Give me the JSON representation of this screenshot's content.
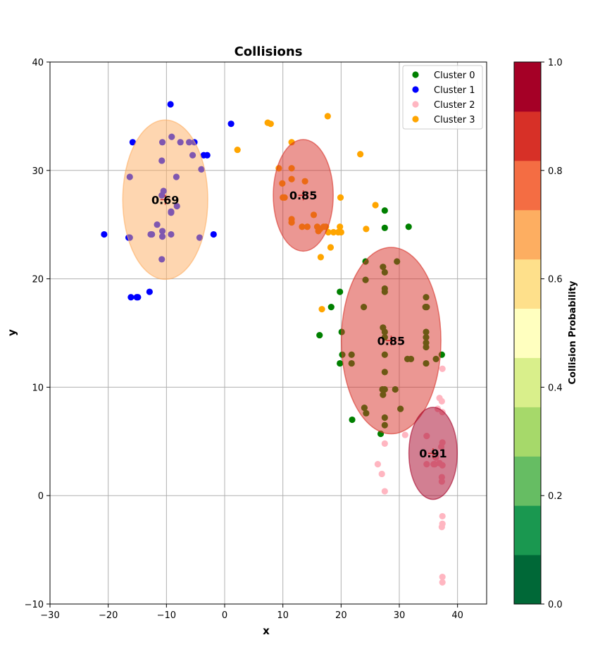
{
  "chart_data": {
    "type": "scatter",
    "title": "Collisions",
    "xlabel": "x",
    "ylabel": "y",
    "xlim": [
      -30,
      45
    ],
    "ylim": [
      -10,
      40
    ],
    "xticks": [
      -30,
      -20,
      -10,
      0,
      10,
      20,
      30,
      40
    ],
    "yticks": [
      -10,
      0,
      10,
      20,
      30,
      40
    ],
    "grid": true,
    "legend_position": "top-right",
    "series": [
      {
        "name": "Cluster 0",
        "color": "#008000",
        "points": [
          [
            27.5,
            26.3
          ],
          [
            27.5,
            24.7
          ],
          [
            31.6,
            24.8
          ],
          [
            24.2,
            21.6
          ],
          [
            27.2,
            21.1
          ],
          [
            29.6,
            21.6
          ],
          [
            24.2,
            19.9
          ],
          [
            27.5,
            20.6
          ],
          [
            19.8,
            18.8
          ],
          [
            27.5,
            19.1
          ],
          [
            27.5,
            18.8
          ],
          [
            34.6,
            18.3
          ],
          [
            18.3,
            17.4
          ],
          [
            23.9,
            17.4
          ],
          [
            34.5,
            17.4
          ],
          [
            34.7,
            17.4
          ],
          [
            27.2,
            15.5
          ],
          [
            16.3,
            14.8
          ],
          [
            20.1,
            15.1
          ],
          [
            27.5,
            15.1
          ],
          [
            34.6,
            15.1
          ],
          [
            27.5,
            14.6
          ],
          [
            34.6,
            14.6
          ],
          [
            34.6,
            14.1
          ],
          [
            34.6,
            13.7
          ],
          [
            20.2,
            13.0
          ],
          [
            21.8,
            13.0
          ],
          [
            27.5,
            13.0
          ],
          [
            37.3,
            13.0
          ],
          [
            31.4,
            12.6
          ],
          [
            32.0,
            12.6
          ],
          [
            36.3,
            12.6
          ],
          [
            19.8,
            12.2
          ],
          [
            21.8,
            12.2
          ],
          [
            34.6,
            12.2
          ],
          [
            27.5,
            11.4
          ],
          [
            27.1,
            9.8
          ],
          [
            27.5,
            9.8
          ],
          [
            29.3,
            9.8
          ],
          [
            27.2,
            9.3
          ],
          [
            30.2,
            8.0
          ],
          [
            24.0,
            8.1
          ],
          [
            24.3,
            7.6
          ],
          [
            27.5,
            7.2
          ],
          [
            21.9,
            7.0
          ],
          [
            27.5,
            6.5
          ],
          [
            26.8,
            5.7
          ]
        ]
      },
      {
        "name": "Cluster 1",
        "color": "#0000ff",
        "points": [
          [
            -9.3,
            36.1
          ],
          [
            1.1,
            34.3
          ],
          [
            -9.1,
            33.1
          ],
          [
            -15.8,
            32.6
          ],
          [
            -10.7,
            32.6
          ],
          [
            -7.6,
            32.6
          ],
          [
            -6.1,
            32.6
          ],
          [
            -5.2,
            32.6
          ],
          [
            -3.6,
            31.4
          ],
          [
            -3.0,
            31.4
          ],
          [
            -5.5,
            31.4
          ],
          [
            -10.8,
            30.9
          ],
          [
            -4.0,
            30.1
          ],
          [
            -16.3,
            29.4
          ],
          [
            -8.3,
            29.4
          ],
          [
            -10.5,
            28.1
          ],
          [
            -10.8,
            27.7
          ],
          [
            -8.2,
            26.7
          ],
          [
            -9.2,
            26.2
          ],
          [
            -9.2,
            26.1
          ],
          [
            -11.6,
            25.0
          ],
          [
            -10.7,
            24.4
          ],
          [
            -20.7,
            24.1
          ],
          [
            -12.7,
            24.1
          ],
          [
            -9.2,
            24.1
          ],
          [
            -10.7,
            23.9
          ],
          [
            -16.5,
            23.8
          ],
          [
            -4.3,
            23.8
          ],
          [
            -1.9,
            24.1
          ],
          [
            -16.3,
            23.8
          ],
          [
            -10.8,
            21.8
          ],
          [
            -12.9,
            18.8
          ],
          [
            -16.1,
            18.3
          ],
          [
            -15.1,
            18.3
          ],
          [
            -14.9,
            18.3
          ],
          [
            -12.5,
            24.1
          ]
        ]
      },
      {
        "name": "Cluster 2",
        "color": "#ffb6c1",
        "points": [
          [
            37.4,
            11.7
          ],
          [
            36.9,
            9.0
          ],
          [
            37.3,
            8.7
          ],
          [
            36.6,
            8.0
          ],
          [
            37.4,
            7.7
          ],
          [
            31.0,
            5.6
          ],
          [
            34.7,
            5.5
          ],
          [
            37.4,
            4.9
          ],
          [
            27.5,
            4.8
          ],
          [
            36.9,
            3.0
          ],
          [
            37.4,
            2.8
          ],
          [
            34.7,
            2.9
          ],
          [
            26.3,
            2.9
          ],
          [
            37.3,
            1.7
          ],
          [
            37.3,
            1.3
          ],
          [
            27.0,
            2.0
          ],
          [
            36.3,
            3.5
          ],
          [
            36.1,
            2.9
          ],
          [
            27.5,
            0.4
          ],
          [
            35.9,
            2.9
          ],
          [
            37.4,
            -1.9
          ],
          [
            37.4,
            -2.6
          ],
          [
            37.3,
            -2.9
          ],
          [
            37.4,
            -7.5
          ],
          [
            37.4,
            -8.0
          ],
          [
            37.2,
            4.5
          ]
        ]
      },
      {
        "name": "Cluster 3",
        "color": "#ffa500",
        "points": [
          [
            17.7,
            35.0
          ],
          [
            7.4,
            34.4
          ],
          [
            7.9,
            34.3
          ],
          [
            11.5,
            32.6
          ],
          [
            2.2,
            31.9
          ],
          [
            23.3,
            31.5
          ],
          [
            9.3,
            30.2
          ],
          [
            11.5,
            30.2
          ],
          [
            11.5,
            29.2
          ],
          [
            13.8,
            29.0
          ],
          [
            9.9,
            28.8
          ],
          [
            10.0,
            27.5
          ],
          [
            10.3,
            27.5
          ],
          [
            19.9,
            27.5
          ],
          [
            25.9,
            26.8
          ],
          [
            15.3,
            25.9
          ],
          [
            11.5,
            25.5
          ],
          [
            11.5,
            25.2
          ],
          [
            13.3,
            24.8
          ],
          [
            14.2,
            24.8
          ],
          [
            15.9,
            24.8
          ],
          [
            17.0,
            24.8
          ],
          [
            17.4,
            24.8
          ],
          [
            19.8,
            24.8
          ],
          [
            24.3,
            24.6
          ],
          [
            16.4,
            24.6
          ],
          [
            16.1,
            24.4
          ],
          [
            17.8,
            24.3
          ],
          [
            18.7,
            24.3
          ],
          [
            19.5,
            24.3
          ],
          [
            20.0,
            24.3
          ],
          [
            18.2,
            22.9
          ],
          [
            16.5,
            22.0
          ],
          [
            16.7,
            17.2
          ]
        ]
      }
    ],
    "ellipses": [
      {
        "cx": -10.2,
        "cy": 27.3,
        "w": 14.6,
        "h": 14.7,
        "probability": 0.69,
        "label": "0.69",
        "color": "#fdae61"
      },
      {
        "cx": 13.5,
        "cy": 27.7,
        "w": 10.3,
        "h": 10.3,
        "probability": 0.85,
        "label": "0.85",
        "color": "#d73027"
      },
      {
        "cx": 28.6,
        "cy": 14.3,
        "w": 17.1,
        "h": 17.2,
        "probability": 0.85,
        "label": "0.85",
        "color": "#d73027"
      },
      {
        "cx": 35.8,
        "cy": 3.9,
        "w": 8.3,
        "h": 8.5,
        "probability": 0.91,
        "label": "0.91",
        "color": "#a50026"
      }
    ],
    "colorbar": {
      "label": "Collision Probability",
      "min": 0.0,
      "max": 1.0,
      "ticks": [
        "0.0",
        "0.2",
        "0.4",
        "0.6",
        "0.8",
        "1.0"
      ],
      "colors": [
        "#006837",
        "#1a9850",
        "#66bd63",
        "#a6d96a",
        "#d9ef8b",
        "#ffffbf",
        "#fee08b",
        "#fdae61",
        "#f46d43",
        "#d73027",
        "#a50026"
      ]
    }
  }
}
